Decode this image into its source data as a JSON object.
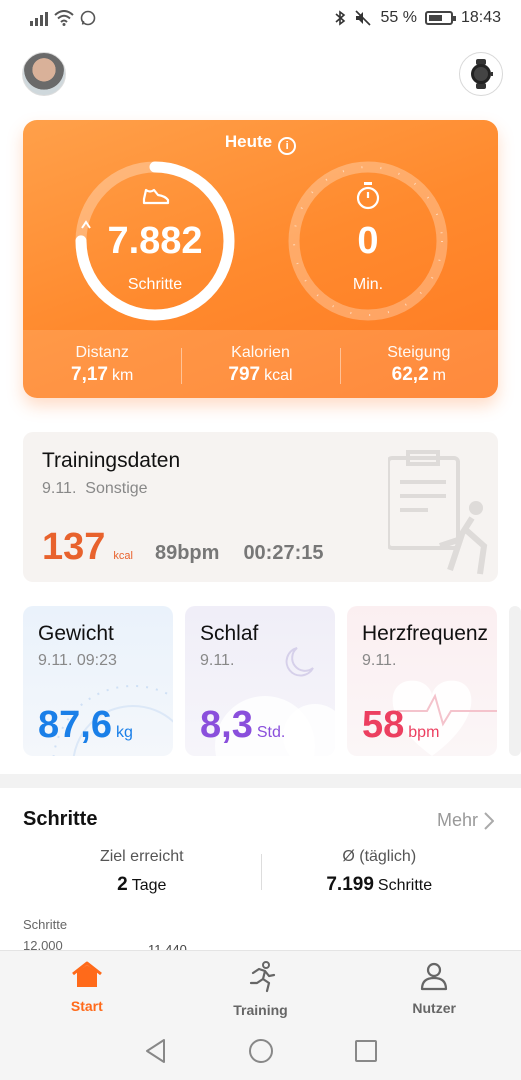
{
  "statusbar": {
    "battery_percent": "55 %",
    "time": "18:43"
  },
  "header": {
    "profile_avatar": "avatar",
    "device_icon": "watch-icon"
  },
  "today_card": {
    "title": "Heute",
    "steps": {
      "value": "7.882",
      "label": "Schritte",
      "goal_progress": 0.75
    },
    "minutes": {
      "value": "0",
      "label": "Min."
    },
    "stats": [
      {
        "label": "Distanz",
        "value": "7,17",
        "unit": "km"
      },
      {
        "label": "Kalorien",
        "value": "797",
        "unit": "kcal"
      },
      {
        "label": "Steigung",
        "value": "62,2",
        "unit": "m"
      }
    ],
    "colors": {
      "background": "#ff8a2e"
    }
  },
  "training": {
    "title": "Trainingsdaten",
    "date": "9.11.",
    "type": "Sonstige",
    "kcal": "137",
    "kcal_unit": "kcal",
    "bpm": "89bpm",
    "duration": "00:27:15"
  },
  "tiles": {
    "weight": {
      "title": "Gewicht",
      "date": "9.11. 09:23",
      "value": "87,6",
      "unit": "kg",
      "color": "#1a7fe8"
    },
    "sleep": {
      "title": "Schlaf",
      "date": "9.11.",
      "value": "8,3",
      "unit": "Std.",
      "color": "#8a4fdc"
    },
    "heart": {
      "title": "Herzfrequenz",
      "date": "9.11.",
      "value": "58",
      "unit": "bpm",
      "color": "#ec3f60"
    }
  },
  "steps_section": {
    "title": "Schritte",
    "more": "Mehr",
    "goal": {
      "label": "Ziel erreicht",
      "value": "2",
      "unit": "Tage"
    },
    "average": {
      "label": "Ø (täglich)",
      "value": "7.199",
      "unit": "Schritte"
    },
    "chart_label": "Schritte",
    "chart_tick": "12.000",
    "chart_peak": "11.440"
  },
  "bottom_nav": [
    {
      "label": "Start",
      "icon": "home-icon",
      "active": true
    },
    {
      "label": "Training",
      "icon": "running-icon",
      "active": false
    },
    {
      "label": "Nutzer",
      "icon": "user-icon",
      "active": false
    }
  ],
  "system_nav": [
    "back-icon",
    "home-circle-icon",
    "recents-icon"
  ]
}
